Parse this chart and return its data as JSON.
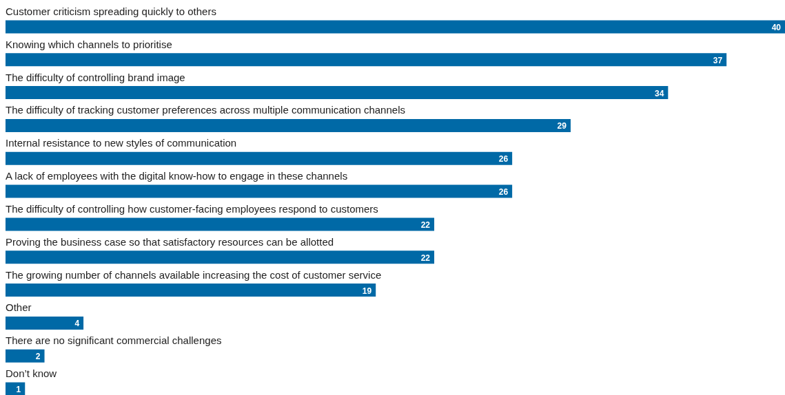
{
  "chart_data": {
    "type": "bar",
    "orientation": "horizontal",
    "data_labels": true,
    "color": "#0069a6",
    "categories": [
      "Customer criticism spreading quickly to others",
      "Knowing which channels to prioritise",
      "The difficulty of controlling brand image",
      "The difficulty of tracking customer preferences across multiple communication channels",
      "Internal resistance to new styles of communication",
      "A lack of employees with the digital know-how to engage in these channels",
      "The difficulty of controlling how customer-facing employees respond to customers",
      "Proving the business case so that satisfactory resources can be allotted",
      "The growing number of channels available increasing the cost of customer service",
      "Other",
      "There are no significant commercial challenges",
      "Don’t know"
    ],
    "values": [
      40,
      37,
      34,
      29,
      26,
      26,
      22,
      22,
      19,
      4,
      2,
      1
    ]
  }
}
